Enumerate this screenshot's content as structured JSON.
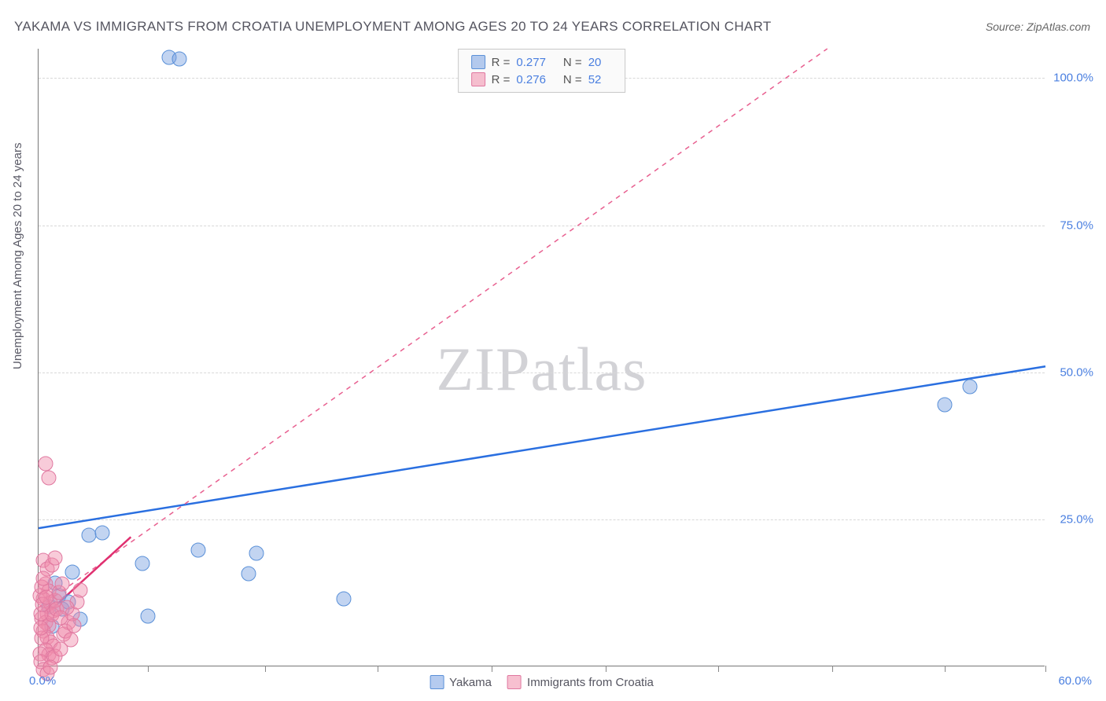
{
  "title": "YAKAMA VS IMMIGRANTS FROM CROATIA UNEMPLOYMENT AMONG AGES 20 TO 24 YEARS CORRELATION CHART",
  "source": "Source: ZipAtlas.com",
  "ylabel": "Unemployment Among Ages 20 to 24 years",
  "watermark_a": "ZIP",
  "watermark_b": "atlas",
  "chart": {
    "type": "scatter",
    "xlim": [
      0,
      60
    ],
    "ylim": [
      0,
      105
    ],
    "x_axis_labels": {
      "min": "0.0%",
      "max": "60.0%"
    },
    "y_ticks": [
      25,
      50,
      75,
      100
    ],
    "y_tick_labels": [
      "25.0%",
      "50.0%",
      "75.0%",
      "100.0%"
    ],
    "x_tick_positions": [
      6.5,
      13.5,
      20.2,
      27,
      33.8,
      40.5,
      47.3,
      54,
      60
    ],
    "grid_color": "#d8d8d8",
    "background_color": "#ffffff",
    "series": [
      {
        "name": "Yakama",
        "color_fill": "rgba(120,160,225,0.45)",
        "color_stroke": "#5a90d8",
        "trend_color": "#2a6fe0",
        "trend_dashed": false,
        "trend": {
          "x1": 0,
          "y1": 23.5,
          "x2": 60,
          "y2": 51
        },
        "r": "0.277",
        "n": "20",
        "points": [
          [
            7.8,
            103.5
          ],
          [
            8.4,
            103.2
          ],
          [
            55.5,
            47.5
          ],
          [
            54,
            44.5
          ],
          [
            18.2,
            11.5
          ],
          [
            13.0,
            19.2
          ],
          [
            9.5,
            19.8
          ],
          [
            12.5,
            15.7
          ],
          [
            6.2,
            17.5
          ],
          [
            3.0,
            22.3
          ],
          [
            3.8,
            22.7
          ],
          [
            1.0,
            14.2
          ],
          [
            1.4,
            9.8
          ],
          [
            0.8,
            6.8
          ],
          [
            1.2,
            12.0
          ],
          [
            2.5,
            8.0
          ],
          [
            1.8,
            11.0
          ],
          [
            0.6,
            10.2
          ],
          [
            2.0,
            16.0
          ],
          [
            6.5,
            8.5
          ]
        ]
      },
      {
        "name": "Immigrants from Croatia",
        "color_fill": "rgba(240,140,170,0.45)",
        "color_stroke": "#e078a0",
        "trend_color": "#e86090",
        "trend_dashed": true,
        "trend": {
          "x1": 0,
          "y1": 10,
          "x2": 47,
          "y2": 105
        },
        "r": "0.276",
        "n": "52",
        "points": [
          [
            0.4,
            34.5
          ],
          [
            0.6,
            32.0
          ],
          [
            0.3,
            18.0
          ],
          [
            0.5,
            16.5
          ],
          [
            0.8,
            17.2
          ],
          [
            1.0,
            18.5
          ],
          [
            0.4,
            14.0
          ],
          [
            0.6,
            12.8
          ],
          [
            0.3,
            11.5
          ],
          [
            0.7,
            10.8
          ],
          [
            0.9,
            9.5
          ],
          [
            0.5,
            9.0
          ],
          [
            0.2,
            8.2
          ],
          [
            0.4,
            7.5
          ],
          [
            0.6,
            7.0
          ],
          [
            0.8,
            8.8
          ],
          [
            1.0,
            11.2
          ],
          [
            1.2,
            12.5
          ],
          [
            1.4,
            14.0
          ],
          [
            1.1,
            9.8
          ],
          [
            0.3,
            6.0
          ],
          [
            0.5,
            5.0
          ],
          [
            0.7,
            4.2
          ],
          [
            0.9,
            3.5
          ],
          [
            0.2,
            4.8
          ],
          [
            0.4,
            2.8
          ],
          [
            0.6,
            2.0
          ],
          [
            0.8,
            1.5
          ],
          [
            1.0,
            1.8
          ],
          [
            1.3,
            3.0
          ],
          [
            1.5,
            5.5
          ],
          [
            1.8,
            7.5
          ],
          [
            2.0,
            9.0
          ],
          [
            2.3,
            11.0
          ],
          [
            2.5,
            13.0
          ],
          [
            0.1,
            12.0
          ],
          [
            0.2,
            13.5
          ],
          [
            0.3,
            15.0
          ],
          [
            0.15,
            9.0
          ],
          [
            0.25,
            10.5
          ],
          [
            1.6,
            6.0
          ],
          [
            1.9,
            4.5
          ],
          [
            0.1,
            2.2
          ],
          [
            0.15,
            0.8
          ],
          [
            0.3,
            -0.5
          ],
          [
            0.5,
            -1.2
          ],
          [
            0.7,
            -0.2
          ],
          [
            0.12,
            6.5
          ],
          [
            0.45,
            11.8
          ],
          [
            1.7,
            10.0
          ],
          [
            2.1,
            7.0
          ],
          [
            1.3,
            8.3
          ]
        ]
      }
    ],
    "pink_short_line": {
      "x1": 0.5,
      "y1": 9,
      "x2": 5.5,
      "y2": 22,
      "color": "#e03070"
    }
  },
  "legend_top": {
    "r_label": "R =",
    "n_label": "N ="
  },
  "legend_bottom": [
    {
      "label": "Yakama",
      "swatch": "blue"
    },
    {
      "label": "Immigrants from Croatia",
      "swatch": "pink"
    }
  ]
}
